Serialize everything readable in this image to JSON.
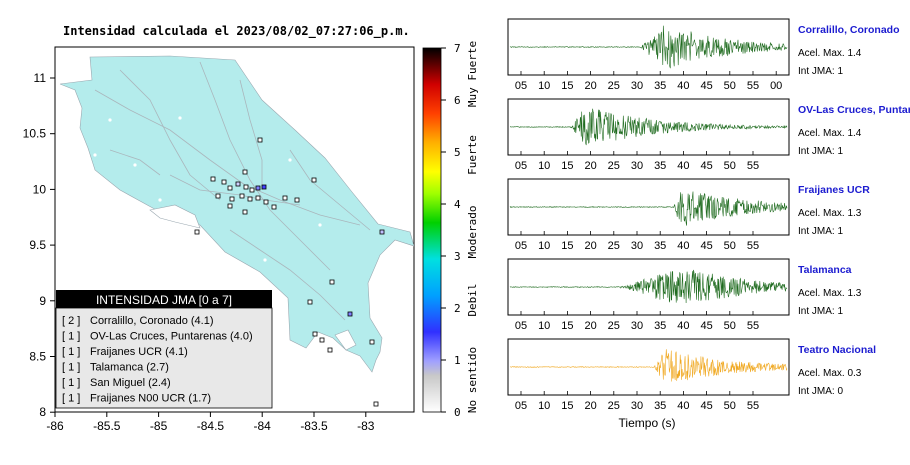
{
  "map": {
    "title": "Intensidad calculada el 2023/08/02_07:27:06_p.m.",
    "land_color": "#b4ecec",
    "x_ticks": [
      "-86",
      "-85.5",
      "-85",
      "-84.5",
      "-84",
      "-83.5",
      "-83"
    ],
    "y_ticks": [
      "11",
      "10.5",
      "10",
      "9.5",
      "9",
      "8.5",
      "8"
    ],
    "legend": {
      "title": "INTENSIDAD JMA [0 a 7]",
      "items": [
        {
          "count": "[ 2 ]",
          "label": "Corralillo, Coronado (4.1)"
        },
        {
          "count": "[ 1 ]",
          "label": "OV-Las Cruces, Puntarenas (4.0)"
        },
        {
          "count": "[ 1 ]",
          "label": "Fraijanes UCR (4.1)"
        },
        {
          "count": "[ 1 ]",
          "label": "Talamanca (2.7)"
        },
        {
          "count": "[ 1 ]",
          "label": "San Miguel (2.4)"
        },
        {
          "count": "[ 1 ]",
          "label": "Fraijanes N00 UCR (1.7)"
        }
      ]
    }
  },
  "colorbar": {
    "ticks": [
      "7",
      "6",
      "5",
      "4",
      "3",
      "2",
      "1",
      "0"
    ],
    "categories": [
      "Muy Fuerte",
      "Fuerte",
      "Moderado",
      "Debil",
      "No sentido"
    ]
  },
  "seismograms": {
    "xlabel": "Tiempo (s)",
    "traces": [
      {
        "station": "Corralillo, Coronado",
        "accel": "Acel. Max. 1.4",
        "jma": "Int JMA: 1",
        "color": "#1f6b1f",
        "ticks": [
          "05",
          "10",
          "15",
          "20",
          "25",
          "30",
          "35",
          "40",
          "45",
          "50",
          "55",
          "00"
        ]
      },
      {
        "station": "OV-Las Cruces, Puntar",
        "accel": "Acel. Max. 1.4",
        "jma": "Int JMA: 1",
        "color": "#1f6b1f",
        "ticks": [
          "05",
          "10",
          "15",
          "20",
          "25",
          "30",
          "35",
          "40",
          "45",
          "50",
          "55"
        ]
      },
      {
        "station": "Fraijanes UCR",
        "accel": "Acel. Max. 1.3",
        "jma": "Int JMA: 1",
        "color": "#1f6b1f",
        "ticks": [
          "05",
          "10",
          "15",
          "20",
          "25",
          "30",
          "35",
          "40",
          "45",
          "50",
          "55"
        ]
      },
      {
        "station": "Talamanca",
        "accel": "Acel. Max. 1.3",
        "jma": "Int JMA: 1",
        "color": "#1f6b1f",
        "ticks": [
          "05",
          "10",
          "15",
          "20",
          "25",
          "30",
          "35",
          "40",
          "45",
          "50",
          "55"
        ]
      },
      {
        "station": "Teatro Nacional",
        "accel": "Acel. Max. 0.3",
        "jma": "Int JMA: 0",
        "color": "#f0a820",
        "ticks": [
          "05",
          "10",
          "15",
          "20",
          "25",
          "30",
          "35",
          "40",
          "45",
          "50",
          "55"
        ]
      }
    ]
  }
}
